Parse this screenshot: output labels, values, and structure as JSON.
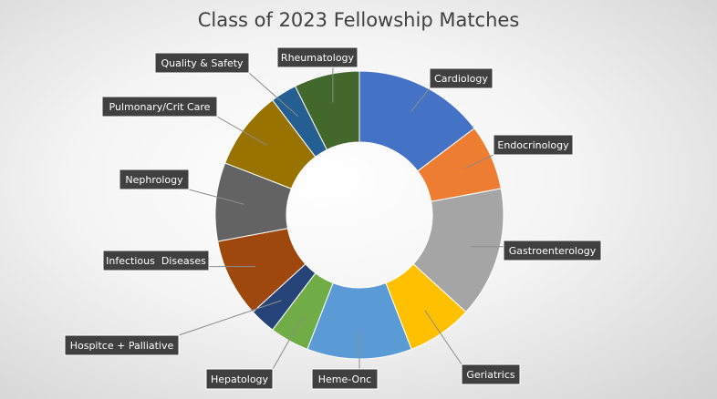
{
  "chart_data": {
    "type": "pie",
    "variant": "doughnut",
    "title": "Class of 2023 Fellowship Matches",
    "legend": "none",
    "data_labels": "category names with leader lines",
    "slices": [
      {
        "label": "Cardiology",
        "value": 5,
        "color": "#4472C4"
      },
      {
        "label": "Endocrinology",
        "value": 2.5,
        "color": "#ED7D31"
      },
      {
        "label": "Gastroenterology",
        "value": 5,
        "color": "#A5A5A5"
      },
      {
        "label": "Geriatrics",
        "value": 2.5,
        "color": "#FFC000"
      },
      {
        "label": "Heme-Onc",
        "value": 4,
        "color": "#5B9BD5"
      },
      {
        "label": "Hepatology",
        "value": 1.5,
        "color": "#70AD47"
      },
      {
        "label": "Hospitce + Palliative",
        "value": 1,
        "color": "#264478"
      },
      {
        "label": "Infectious  Diseases",
        "value": 3,
        "color": "#9E480E"
      },
      {
        "label": "Nephrology",
        "value": 3,
        "color": "#636363"
      },
      {
        "label": "Pulmonary/Crit Care",
        "value": 3,
        "color": "#997300"
      },
      {
        "label": "Quality & Safety",
        "value": 1,
        "color": "#255E91"
      },
      {
        "label": "Rheumatology",
        "value": 2.5,
        "color": "#43682B"
      }
    ]
  }
}
